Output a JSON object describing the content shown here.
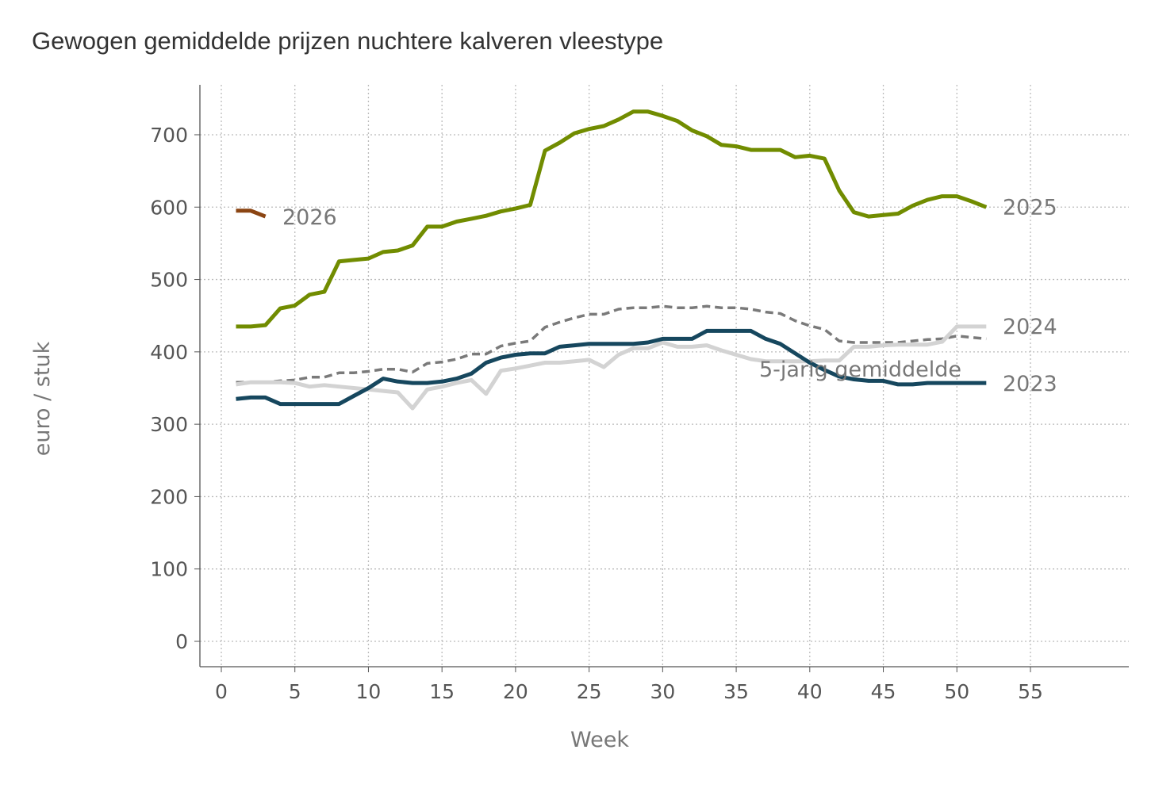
{
  "chart_data": {
    "type": "line",
    "title": "Gewogen gemiddelde prijzen nuchtere kalveren vleestype",
    "xlabel": "Week",
    "ylabel": "euro / stuk",
    "xlim": [
      -1.5,
      61
    ],
    "ylim": [
      -35,
      765
    ],
    "xticks": [
      0,
      5,
      10,
      15,
      20,
      25,
      30,
      35,
      40,
      45,
      50,
      55
    ],
    "yticks": [
      0,
      100,
      200,
      300,
      400,
      500,
      600,
      700
    ],
    "grid": true,
    "legend": "inline labels at line ends",
    "series": [
      {
        "name": "5-jarig gemiddelde",
        "color": "#7a7a7a",
        "dashed": true,
        "start_week": 1,
        "values": [
          358,
          358,
          358,
          360,
          361,
          365,
          365,
          371,
          371,
          373,
          376,
          376,
          372,
          384,
          386,
          390,
          397,
          397,
          408,
          412,
          415,
          434,
          441,
          447,
          452,
          452,
          459,
          461,
          461,
          463,
          461,
          461,
          463,
          461,
          461,
          459,
          455,
          453,
          443,
          436,
          431,
          415,
          413,
          413,
          413,
          413,
          415,
          417,
          418,
          422,
          420,
          418
        ]
      },
      {
        "name": "2024",
        "color": "#d3d3d3",
        "dashed": false,
        "start_week": 1,
        "values": [
          355,
          358,
          358,
          358,
          357,
          352,
          354,
          352,
          350,
          348,
          346,
          344,
          322,
          348,
          352,
          357,
          361,
          342,
          374,
          377,
          381,
          385,
          385,
          387,
          389,
          379,
          396,
          405,
          405,
          413,
          407,
          407,
          409,
          402,
          396,
          390,
          387,
          387,
          387,
          387,
          388,
          388,
          407,
          407,
          409,
          410,
          410,
          410,
          414,
          435,
          435,
          435
        ]
      },
      {
        "name": "2023",
        "color": "#16475e",
        "dashed": false,
        "start_week": 1,
        "values": [
          335,
          337,
          337,
          328,
          328,
          328,
          328,
          328,
          339,
          350,
          363,
          359,
          357,
          357,
          359,
          363,
          370,
          385,
          392,
          396,
          398,
          398,
          407,
          409,
          411,
          411,
          411,
          411,
          413,
          418,
          418,
          418,
          429,
          429,
          429,
          429,
          418,
          411,
          398,
          385,
          375,
          366,
          362,
          360,
          360,
          355,
          355,
          357,
          357,
          357,
          357,
          357
        ]
      },
      {
        "name": "2025",
        "color": "#718c00",
        "dashed": false,
        "start_week": 1,
        "values": [
          435,
          435,
          437,
          460,
          464,
          479,
          483,
          525,
          527,
          529,
          538,
          540,
          547,
          573,
          573,
          580,
          584,
          588,
          594,
          598,
          603,
          678,
          689,
          702,
          708,
          712,
          721,
          732,
          732,
          726,
          719,
          706,
          698,
          686,
          684,
          679,
          679,
          679,
          669,
          671,
          667,
          623,
          593,
          587,
          589,
          591,
          602,
          610,
          615,
          615,
          608,
          600
        ]
      },
      {
        "name": "2026",
        "color": "#8b4513",
        "dashed": false,
        "start_week": 1,
        "values": [
          595,
          595,
          587
        ]
      }
    ]
  }
}
